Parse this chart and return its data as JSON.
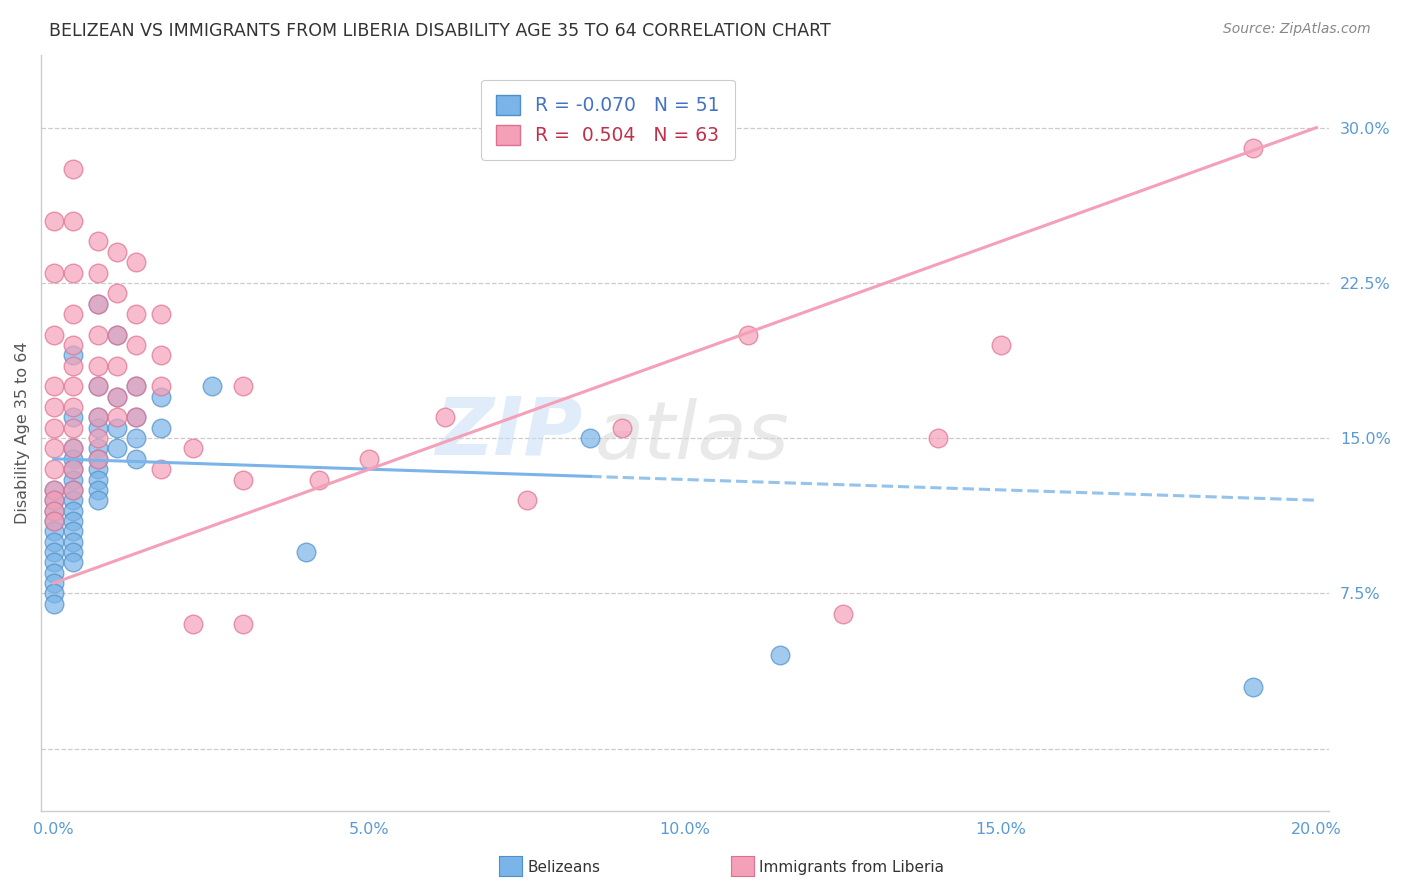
{
  "title": "BELIZEAN VS IMMIGRANTS FROM LIBERIA DISABILITY AGE 35 TO 64 CORRELATION CHART",
  "source": "Source: ZipAtlas.com",
  "ylabel": "Disability Age 35 to 64",
  "xlim": [
    -0.002,
    0.202
  ],
  "ylim": [
    -0.03,
    0.335
  ],
  "xticks": [
    0.0,
    0.05,
    0.1,
    0.15,
    0.2
  ],
  "xtick_labels": [
    "0.0%",
    "5.0%",
    "10.0%",
    "15.0%",
    "20.0%"
  ],
  "yticks": [
    0.0,
    0.075,
    0.15,
    0.225,
    0.3
  ],
  "ytick_labels": [
    "",
    "7.5%",
    "15.0%",
    "22.5%",
    "30.0%"
  ],
  "belizean_color": "#7ab4e8",
  "liberia_color": "#f4a0b8",
  "belizean_edge": "#5090c8",
  "liberia_edge": "#e07090",
  "belizean_R": -0.07,
  "belizean_N": 51,
  "liberia_R": 0.504,
  "liberia_N": 63,
  "legend_label_1": "Belizeans",
  "legend_label_2": "Immigrants from Liberia",
  "background_color": "#ffffff",
  "grid_color": "#cccccc",
  "title_color": "#333333",
  "ylabel_color": "#555555",
  "tick_color": "#5b9bd5",
  "source_color": "#888888",
  "belizean_trend_x": [
    0.0,
    0.2
  ],
  "belizean_trend_y": [
    0.14,
    0.12
  ],
  "liberia_trend_x": [
    0.0,
    0.2
  ],
  "liberia_trend_y": [
    0.08,
    0.3
  ],
  "belizean_scatter": [
    [
      0.0,
      0.125
    ],
    [
      0.0,
      0.12
    ],
    [
      0.0,
      0.115
    ],
    [
      0.0,
      0.11
    ],
    [
      0.0,
      0.105
    ],
    [
      0.0,
      0.1
    ],
    [
      0.0,
      0.095
    ],
    [
      0.0,
      0.09
    ],
    [
      0.0,
      0.085
    ],
    [
      0.0,
      0.08
    ],
    [
      0.0,
      0.075
    ],
    [
      0.0,
      0.07
    ],
    [
      0.003,
      0.19
    ],
    [
      0.003,
      0.16
    ],
    [
      0.003,
      0.145
    ],
    [
      0.003,
      0.14
    ],
    [
      0.003,
      0.135
    ],
    [
      0.003,
      0.13
    ],
    [
      0.003,
      0.125
    ],
    [
      0.003,
      0.12
    ],
    [
      0.003,
      0.115
    ],
    [
      0.003,
      0.11
    ],
    [
      0.003,
      0.105
    ],
    [
      0.003,
      0.1
    ],
    [
      0.003,
      0.095
    ],
    [
      0.003,
      0.09
    ],
    [
      0.007,
      0.215
    ],
    [
      0.007,
      0.175
    ],
    [
      0.007,
      0.16
    ],
    [
      0.007,
      0.155
    ],
    [
      0.007,
      0.145
    ],
    [
      0.007,
      0.14
    ],
    [
      0.007,
      0.135
    ],
    [
      0.007,
      0.13
    ],
    [
      0.007,
      0.125
    ],
    [
      0.007,
      0.12
    ],
    [
      0.01,
      0.2
    ],
    [
      0.01,
      0.17
    ],
    [
      0.01,
      0.155
    ],
    [
      0.01,
      0.145
    ],
    [
      0.013,
      0.175
    ],
    [
      0.013,
      0.16
    ],
    [
      0.013,
      0.15
    ],
    [
      0.013,
      0.14
    ],
    [
      0.017,
      0.17
    ],
    [
      0.017,
      0.155
    ],
    [
      0.025,
      0.175
    ],
    [
      0.04,
      0.095
    ],
    [
      0.085,
      0.15
    ],
    [
      0.115,
      0.045
    ],
    [
      0.19,
      0.03
    ]
  ],
  "liberia_scatter": [
    [
      0.0,
      0.255
    ],
    [
      0.0,
      0.23
    ],
    [
      0.0,
      0.2
    ],
    [
      0.0,
      0.175
    ],
    [
      0.0,
      0.165
    ],
    [
      0.0,
      0.155
    ],
    [
      0.0,
      0.145
    ],
    [
      0.0,
      0.135
    ],
    [
      0.0,
      0.125
    ],
    [
      0.0,
      0.12
    ],
    [
      0.0,
      0.115
    ],
    [
      0.0,
      0.11
    ],
    [
      0.003,
      0.28
    ],
    [
      0.003,
      0.255
    ],
    [
      0.003,
      0.23
    ],
    [
      0.003,
      0.21
    ],
    [
      0.003,
      0.195
    ],
    [
      0.003,
      0.185
    ],
    [
      0.003,
      0.175
    ],
    [
      0.003,
      0.165
    ],
    [
      0.003,
      0.155
    ],
    [
      0.003,
      0.145
    ],
    [
      0.003,
      0.135
    ],
    [
      0.003,
      0.125
    ],
    [
      0.007,
      0.245
    ],
    [
      0.007,
      0.23
    ],
    [
      0.007,
      0.215
    ],
    [
      0.007,
      0.2
    ],
    [
      0.007,
      0.185
    ],
    [
      0.007,
      0.175
    ],
    [
      0.007,
      0.16
    ],
    [
      0.007,
      0.15
    ],
    [
      0.007,
      0.14
    ],
    [
      0.01,
      0.24
    ],
    [
      0.01,
      0.22
    ],
    [
      0.01,
      0.2
    ],
    [
      0.01,
      0.185
    ],
    [
      0.01,
      0.17
    ],
    [
      0.01,
      0.16
    ],
    [
      0.013,
      0.235
    ],
    [
      0.013,
      0.21
    ],
    [
      0.013,
      0.195
    ],
    [
      0.013,
      0.175
    ],
    [
      0.013,
      0.16
    ],
    [
      0.017,
      0.21
    ],
    [
      0.017,
      0.19
    ],
    [
      0.017,
      0.175
    ],
    [
      0.017,
      0.135
    ],
    [
      0.022,
      0.145
    ],
    [
      0.022,
      0.06
    ],
    [
      0.03,
      0.175
    ],
    [
      0.03,
      0.13
    ],
    [
      0.03,
      0.06
    ],
    [
      0.042,
      0.13
    ],
    [
      0.05,
      0.14
    ],
    [
      0.062,
      0.16
    ],
    [
      0.075,
      0.12
    ],
    [
      0.09,
      0.155
    ],
    [
      0.11,
      0.2
    ],
    [
      0.125,
      0.065
    ],
    [
      0.14,
      0.15
    ],
    [
      0.15,
      0.195
    ],
    [
      0.19,
      0.29
    ]
  ]
}
